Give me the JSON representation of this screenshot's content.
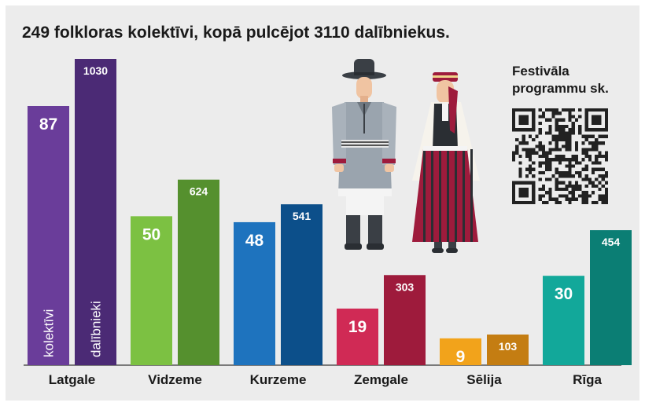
{
  "title": "249 folkloras kolektīvi, kopā pulcējot 3110 dalībniekus.",
  "qr_label": [
    "Festivāla",
    "programmu sk."
  ],
  "chart_data": {
    "type": "bar",
    "categories": [
      "Latgale",
      "Vidzeme",
      "Kurzeme",
      "Zemgale",
      "Sēlija",
      "Rīga"
    ],
    "series": [
      {
        "name": "kolektīvi",
        "values": [
          87,
          50,
          48,
          19,
          9,
          30
        ]
      },
      {
        "name": "dalībnieki",
        "values": [
          1030,
          624,
          541,
          303,
          103,
          454
        ]
      }
    ],
    "colors": {
      "kolektivi": [
        "#6a3d9a",
        "#7cc142",
        "#1e73be",
        "#d02a55",
        "#f2a31b",
        "#12a89a"
      ],
      "dalibnieki": [
        "#4b2a75",
        "#55902e",
        "#0c4f8a",
        "#9e1b3c",
        "#c47d12",
        "#0b7e74"
      ]
    }
  }
}
